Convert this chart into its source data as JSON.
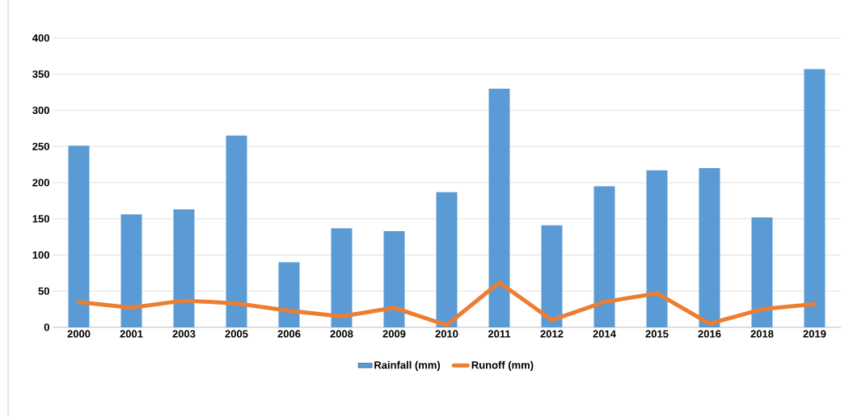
{
  "chart_data": {
    "type": "bar",
    "categories": [
      "2000",
      "2001",
      "2003",
      "2005",
      "2006",
      "2008",
      "2009",
      "2010",
      "2011",
      "2012",
      "2014",
      "2015",
      "2016",
      "2018",
      "2019"
    ],
    "series": [
      {
        "name": "Rainfall (mm)",
        "type": "bar",
        "color": "#5b9bd5",
        "values": [
          251,
          156,
          163,
          265,
          90,
          137,
          133,
          187,
          330,
          141,
          195,
          217,
          220,
          152,
          357
        ]
      },
      {
        "name": "Runoff (mm)",
        "type": "line",
        "color": "#ed7d31",
        "values": [
          35,
          27,
          37,
          33,
          23,
          15,
          27,
          3,
          62,
          10,
          35,
          47,
          5,
          25,
          32
        ]
      }
    ],
    "ylim": [
      0,
      400
    ],
    "yticks": [
      0,
      50,
      100,
      150,
      200,
      250,
      300,
      350,
      400
    ],
    "grid": "y",
    "legend": "bottom",
    "marker": "none",
    "line_style": "solid"
  }
}
